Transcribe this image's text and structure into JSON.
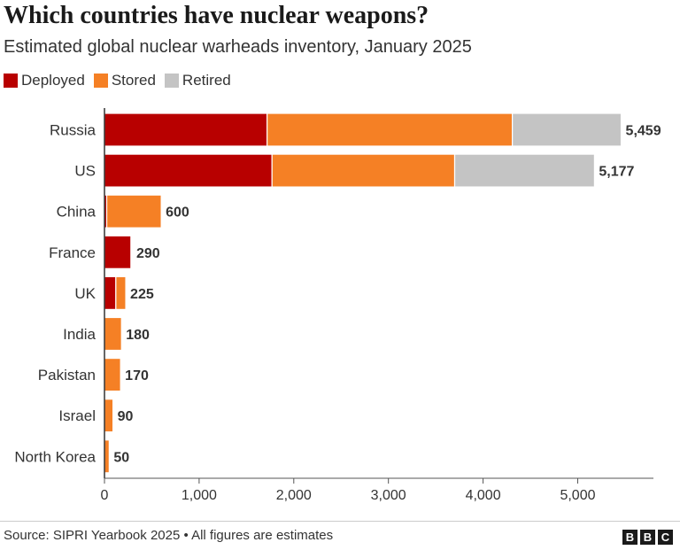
{
  "title": "Which countries have nuclear weapons?",
  "subtitle": "Estimated global nuclear warheads inventory, January 2025",
  "source": "Source: SIPRI Yearbook 2025 • All figures are estimates",
  "logo": {
    "text": "BBC",
    "letters": [
      "B",
      "B",
      "C"
    ]
  },
  "colors": {
    "deployed": "#b80000",
    "stored": "#f58025",
    "retired": "#c4c4c4"
  },
  "chart_data": {
    "type": "bar",
    "orientation": "horizontal",
    "stacked": true,
    "categories": [
      "Russia",
      "US",
      "China",
      "France",
      "UK",
      "India",
      "Pakistan",
      "Israel",
      "North Korea"
    ],
    "series": [
      {
        "name": "Deployed",
        "color": "#b80000",
        "values": [
          1718,
          1770,
          24,
          280,
          120,
          0,
          0,
          0,
          0
        ]
      },
      {
        "name": "Stored",
        "color": "#f58025",
        "values": [
          2591,
          1930,
          576,
          10,
          105,
          180,
          170,
          90,
          50
        ]
      },
      {
        "name": "Retired",
        "color": "#c4c4c4",
        "values": [
          1150,
          1477,
          0,
          0,
          0,
          0,
          0,
          0,
          0
        ]
      }
    ],
    "totals": [
      5459,
      5177,
      600,
      290,
      225,
      180,
      170,
      90,
      50
    ],
    "total_labels": [
      "5,459",
      "5,177",
      "600",
      "290",
      "225",
      "180",
      "170",
      "90",
      "50"
    ],
    "xlim": [
      0,
      5800
    ],
    "xticks": [
      0,
      1000,
      2000,
      3000,
      4000,
      5000
    ],
    "xtick_labels": [
      "0",
      "1,000",
      "2,000",
      "3,000",
      "4,000",
      "5,000"
    ],
    "legend": [
      "Deployed",
      "Stored",
      "Retired"
    ],
    "legend_position": "top-left",
    "grid": false
  }
}
